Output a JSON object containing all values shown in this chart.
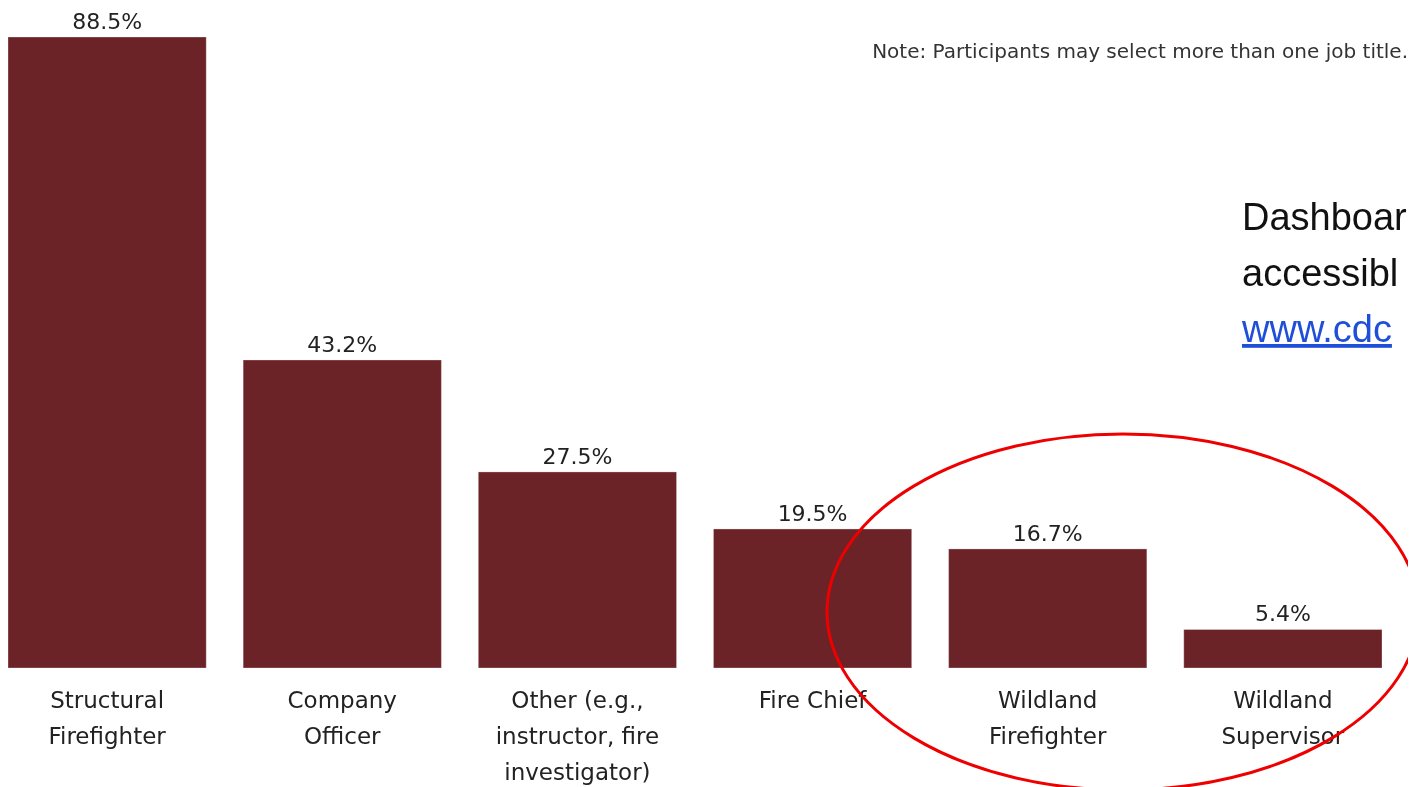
{
  "chart_data": {
    "type": "bar",
    "categories": [
      "Structural\nFirefighter",
      "Company\nOfficer",
      "Other (e.g.,\ninstructor, fire\ninvestigator)",
      "Fire Chief",
      "Wildland\nFirefighter",
      "Wildland\nSupervisor"
    ],
    "values": [
      88.5,
      43.2,
      27.5,
      19.5,
      16.7,
      5.4
    ],
    "value_labels": [
      "88.5%",
      "43.2%",
      "27.5%",
      "19.5%",
      "16.7%",
      "5.4%"
    ],
    "color": "#6b2327",
    "annotations": [
      "Note: Participants may select more than one job title.",
      "Dashboar",
      "accessibl",
      "www.cdc"
    ]
  }
}
